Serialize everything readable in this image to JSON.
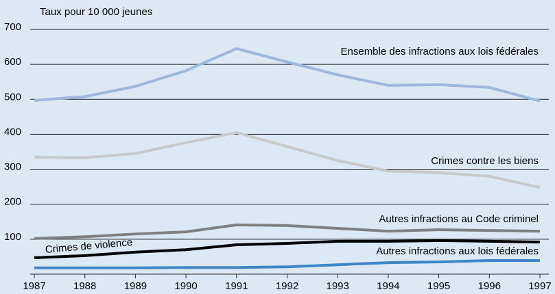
{
  "chart_data": {
    "type": "line",
    "y_label": "Taux pour 10 000 jeunes",
    "x": [
      1987,
      1988,
      1989,
      1990,
      1991,
      1992,
      1993,
      1994,
      1995,
      1996,
      1997
    ],
    "xlim": [
      1987,
      1997
    ],
    "xticks": [
      1987,
      1988,
      1989,
      1990,
      1991,
      1992,
      1993,
      1994,
      1995,
      1996,
      1997
    ],
    "ylim": [
      0,
      700
    ],
    "yticks": [
      100,
      200,
      300,
      400,
      500,
      600,
      700
    ],
    "grid": true,
    "series": [
      {
        "name": "Ensemble des infractions aux lois fédérales",
        "color": "#9db7dd",
        "values": [
          497,
          508,
          537,
          582,
          645,
          607,
          570,
          540,
          542,
          534,
          495
        ]
      },
      {
        "name": "Crimes contre les biens",
        "color": "#c9c9c9",
        "values": [
          335,
          333,
          345,
          376,
          405,
          365,
          325,
          295,
          290,
          280,
          248
        ]
      },
      {
        "name": "Autres infractions au Code criminel",
        "color": "#808080",
        "values": [
          102,
          107,
          115,
          121,
          141,
          139,
          131,
          123,
          127,
          125,
          123
        ]
      },
      {
        "name": "Crimes de violence",
        "color": "#000000",
        "values": [
          47,
          53,
          63,
          70,
          84,
          88,
          94,
          94,
          96,
          94,
          92
        ]
      },
      {
        "name": "Autres infractions aux lois fédérales",
        "color": "#3f86c8",
        "values": [
          18,
          18,
          18,
          19,
          19,
          21,
          27,
          33,
          35,
          39,
          39
        ]
      }
    ]
  }
}
